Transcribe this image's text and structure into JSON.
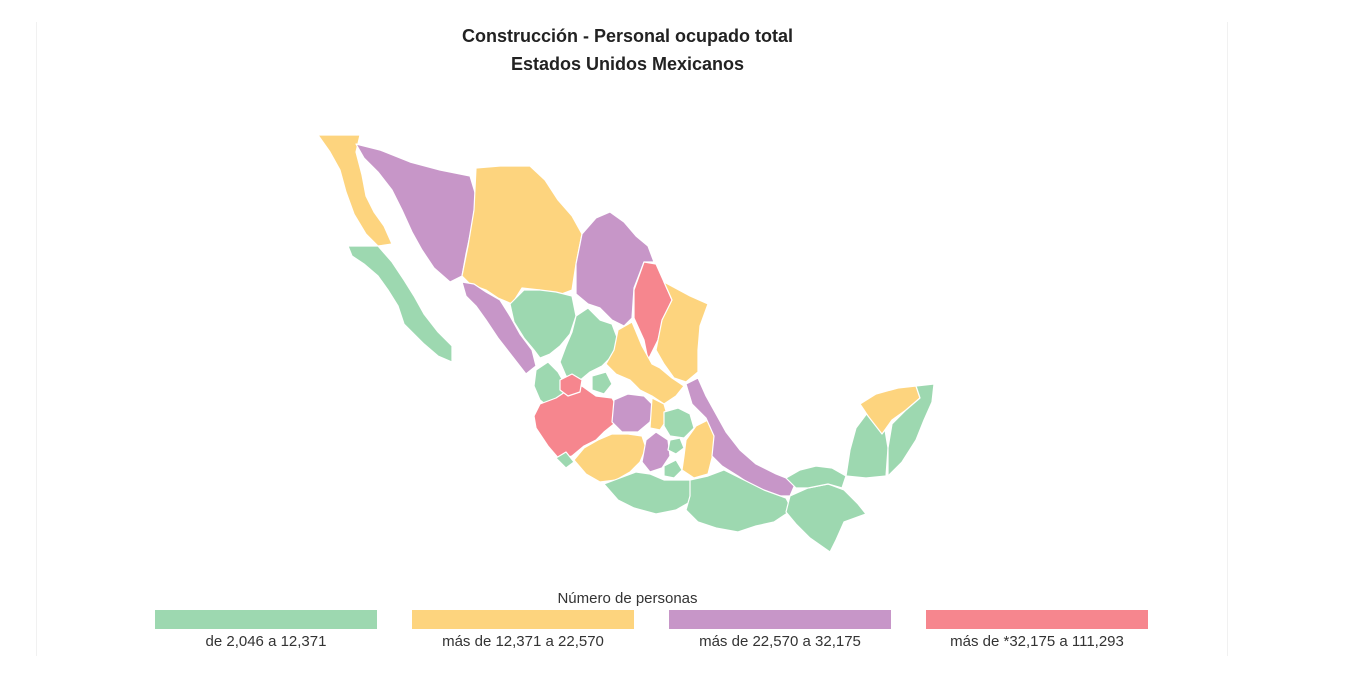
{
  "title": "Construcción - Personal ocupado total",
  "subtitle": "Estados Unidos Mexicanos",
  "legend": {
    "title": "Número de personas",
    "classes": [
      {
        "label": "de 2,046 a 12,371",
        "color": "#9dd8b0"
      },
      {
        "label": "más de 12,371 a 22,570",
        "color": "#fdd47e"
      },
      {
        "label": "más de 22,570 a 32,175",
        "color": "#c796c8"
      },
      {
        "label": "más de *32,175 a 111,293",
        "color": "#f6868e"
      }
    ]
  },
  "colors": {
    "green": "#9dd8b0",
    "yellow": "#fdd47e",
    "purple": "#c796c8",
    "red": "#f6868e"
  }
}
